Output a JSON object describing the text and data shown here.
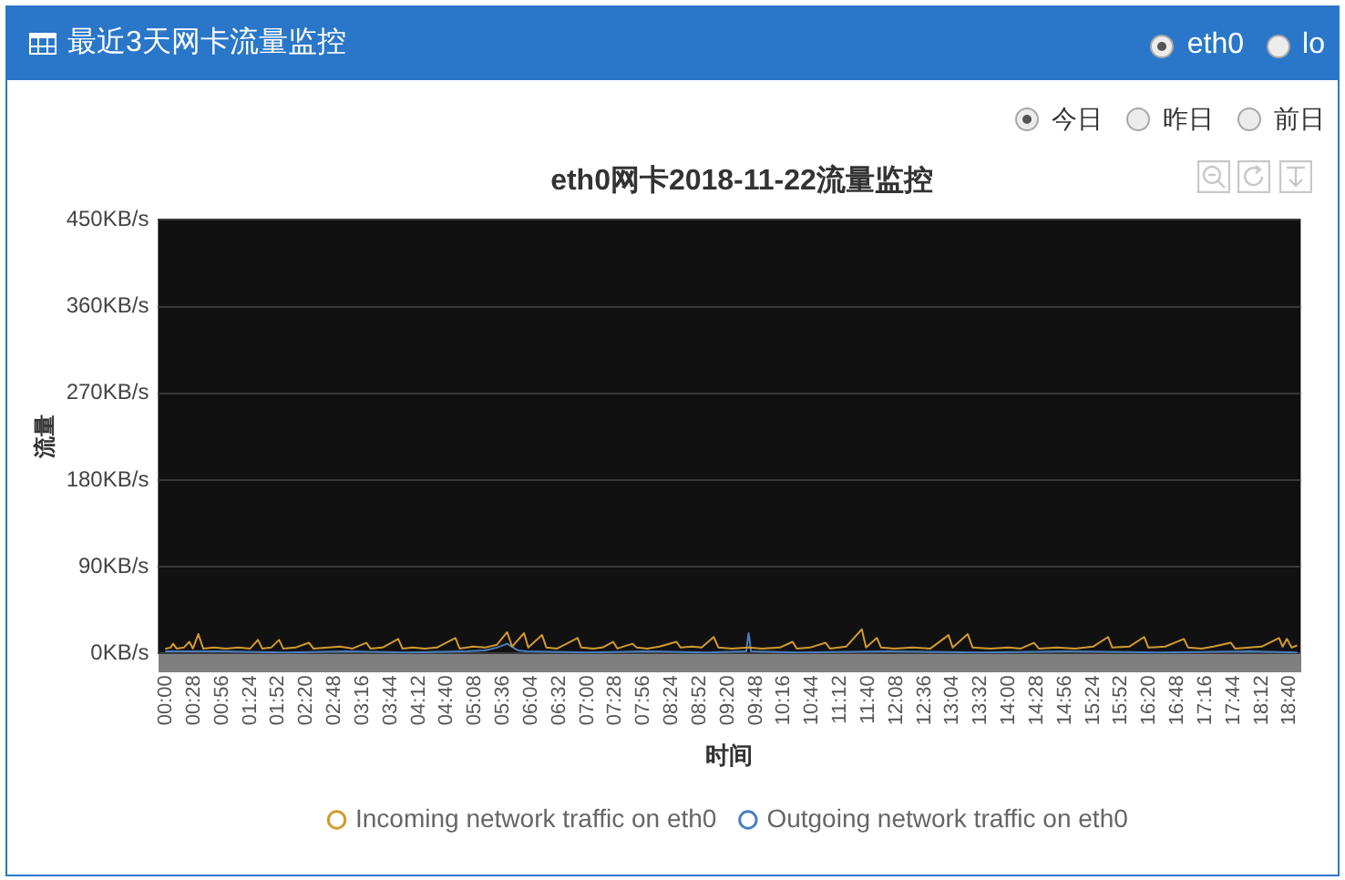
{
  "chart_data": {
    "type": "line",
    "title": "eth0网卡2018-11-22流量监控",
    "xlabel": "时间",
    "ylabel": "流量",
    "annotations": [
      "最近3天网卡流量监控",
      "eth0",
      "lo",
      "今日",
      "昨日",
      "前日"
    ],
    "xlim": [
      -0.13,
      18.85
    ],
    "xticks": [
      {
        "value": 0,
        "label": "00:00"
      },
      {
        "value": 0.467,
        "label": "00:28"
      },
      {
        "value": 0.933,
        "label": "00:56"
      },
      {
        "value": 1.4,
        "label": "01:24"
      },
      {
        "value": 1.867,
        "label": "01:52"
      },
      {
        "value": 2.333,
        "label": "02:20"
      },
      {
        "value": 2.8,
        "label": "02:48"
      },
      {
        "value": 3.267,
        "label": "03:16"
      },
      {
        "value": 3.733,
        "label": "03:44"
      },
      {
        "value": 4.2,
        "label": "04:12"
      },
      {
        "value": 4.667,
        "label": "04:40"
      },
      {
        "value": 5.133,
        "label": "05:08"
      },
      {
        "value": 5.6,
        "label": "05:36"
      },
      {
        "value": 6.067,
        "label": "06:04"
      },
      {
        "value": 6.533,
        "label": "06:32"
      },
      {
        "value": 7,
        "label": "07:00"
      },
      {
        "value": 7.467,
        "label": "07:28"
      },
      {
        "value": 7.933,
        "label": "07:56"
      },
      {
        "value": 8.4,
        "label": "08:24"
      },
      {
        "value": 8.867,
        "label": "08:52"
      },
      {
        "value": 9.333,
        "label": "09:20"
      },
      {
        "value": 9.8,
        "label": "09:48"
      },
      {
        "value": 10.267,
        "label": "10:16"
      },
      {
        "value": 10.733,
        "label": "10:44"
      },
      {
        "value": 11.2,
        "label": "11:12"
      },
      {
        "value": 11.667,
        "label": "11:40"
      },
      {
        "value": 12.133,
        "label": "12:08"
      },
      {
        "value": 12.6,
        "label": "12:36"
      },
      {
        "value": 13.067,
        "label": "13:04"
      },
      {
        "value": 13.533,
        "label": "13:32"
      },
      {
        "value": 14,
        "label": "14:00"
      },
      {
        "value": 14.467,
        "label": "14:28"
      },
      {
        "value": 14.933,
        "label": "14:56"
      },
      {
        "value": 15.4,
        "label": "15:24"
      },
      {
        "value": 15.867,
        "label": "15:52"
      },
      {
        "value": 16.333,
        "label": "16:20"
      },
      {
        "value": 16.8,
        "label": "16:48"
      },
      {
        "value": 17.267,
        "label": "17:16"
      },
      {
        "value": 17.733,
        "label": "17:44"
      },
      {
        "value": 18.2,
        "label": "18:12"
      },
      {
        "value": 18.667,
        "label": "18:40"
      }
    ],
    "ylim": [
      0,
      450
    ],
    "yticks": [
      {
        "value": 0,
        "label": "0KB/s"
      },
      {
        "value": 90,
        "label": "90KB/s"
      },
      {
        "value": 180,
        "label": "180KB/s"
      },
      {
        "value": 270,
        "label": "270KB/s"
      },
      {
        "value": 360,
        "label": "360KB/s"
      },
      {
        "value": 450,
        "label": "450KB/s"
      }
    ],
    "grid": "y",
    "legend": "bottom",
    "line_style": "solid",
    "series": [
      {
        "name": "Incoming network traffic on eth0",
        "color": "#d09a2e",
        "x": [
          0,
          0.08,
          0.12,
          0.18,
          0.3,
          0.39,
          0.45,
          0.54,
          0.62,
          0.8,
          1,
          1.2,
          1.4,
          1.53,
          1.6,
          1.75,
          1.88,
          1.95,
          2.15,
          2.38,
          2.45,
          2.7,
          2.9,
          3.1,
          3.33,
          3.4,
          3.6,
          3.86,
          3.93,
          4.1,
          4.3,
          4.5,
          4.81,
          4.88,
          5.1,
          5.3,
          5.5,
          5.67,
          5.75,
          5.95,
          6.02,
          6.25,
          6.32,
          6.5,
          6.84,
          6.9,
          7.1,
          7.25,
          7.43,
          7.5,
          7.75,
          7.82,
          8,
          8.2,
          8.48,
          8.55,
          8.75,
          8.9,
          9.1,
          9.18,
          9.4,
          9.68,
          9.9,
          10.2,
          10.41,
          10.48,
          10.7,
          10.96,
          11.03,
          11.3,
          11.56,
          11.63,
          11.81,
          11.88,
          12.1,
          12.4,
          12.7,
          13,
          13.07,
          13.32,
          13.4,
          13.7,
          14,
          14.2,
          14.42,
          14.5,
          14.8,
          15.1,
          15.4,
          15.65,
          15.72,
          16,
          16.25,
          16.32,
          16.6,
          16.91,
          16.98,
          17.2,
          17.4,
          17.69,
          17.76,
          18,
          18.2,
          18.49,
          18.55,
          18.62,
          18.7,
          18.78
        ],
        "values": [
          5,
          6,
          10,
          5,
          6,
          12,
          5,
          20,
          5,
          6,
          5,
          6,
          5,
          14,
          5,
          6,
          14,
          5,
          6,
          11,
          5,
          6,
          7,
          5,
          11,
          5,
          6,
          15,
          5,
          6,
          5,
          6,
          16,
          5,
          7,
          6,
          9,
          22,
          7,
          21,
          6,
          19,
          6,
          5,
          16,
          6,
          5,
          6,
          12,
          5,
          10,
          6,
          5,
          7,
          12,
          6,
          7,
          6,
          17,
          6,
          5,
          6,
          5,
          6,
          12,
          5,
          6,
          11,
          5,
          7,
          25,
          6,
          16,
          6,
          5,
          6,
          5,
          19,
          6,
          20,
          6,
          5,
          6,
          5,
          11,
          5,
          6,
          5,
          7,
          17,
          6,
          7,
          17,
          6,
          7,
          15,
          6,
          5,
          7,
          11,
          5,
          6,
          7,
          16,
          7,
          15,
          6,
          8
        ]
      },
      {
        "name": "Outgoing network traffic on eth0",
        "color": "#4a7fbf",
        "x": [
          0,
          1,
          2,
          3,
          4,
          5,
          5.3,
          5.5,
          5.67,
          5.85,
          6,
          7,
          8,
          9,
          9.64,
          9.68,
          9.72,
          10.5,
          12,
          13.5,
          15,
          16.5,
          18,
          18.78
        ],
        "values": [
          2,
          2,
          1,
          2,
          1,
          2,
          3,
          6,
          10,
          3,
          2,
          1,
          2,
          1,
          2,
          21,
          2,
          1,
          2,
          1,
          2,
          1,
          2,
          1
        ]
      }
    ]
  }
}
